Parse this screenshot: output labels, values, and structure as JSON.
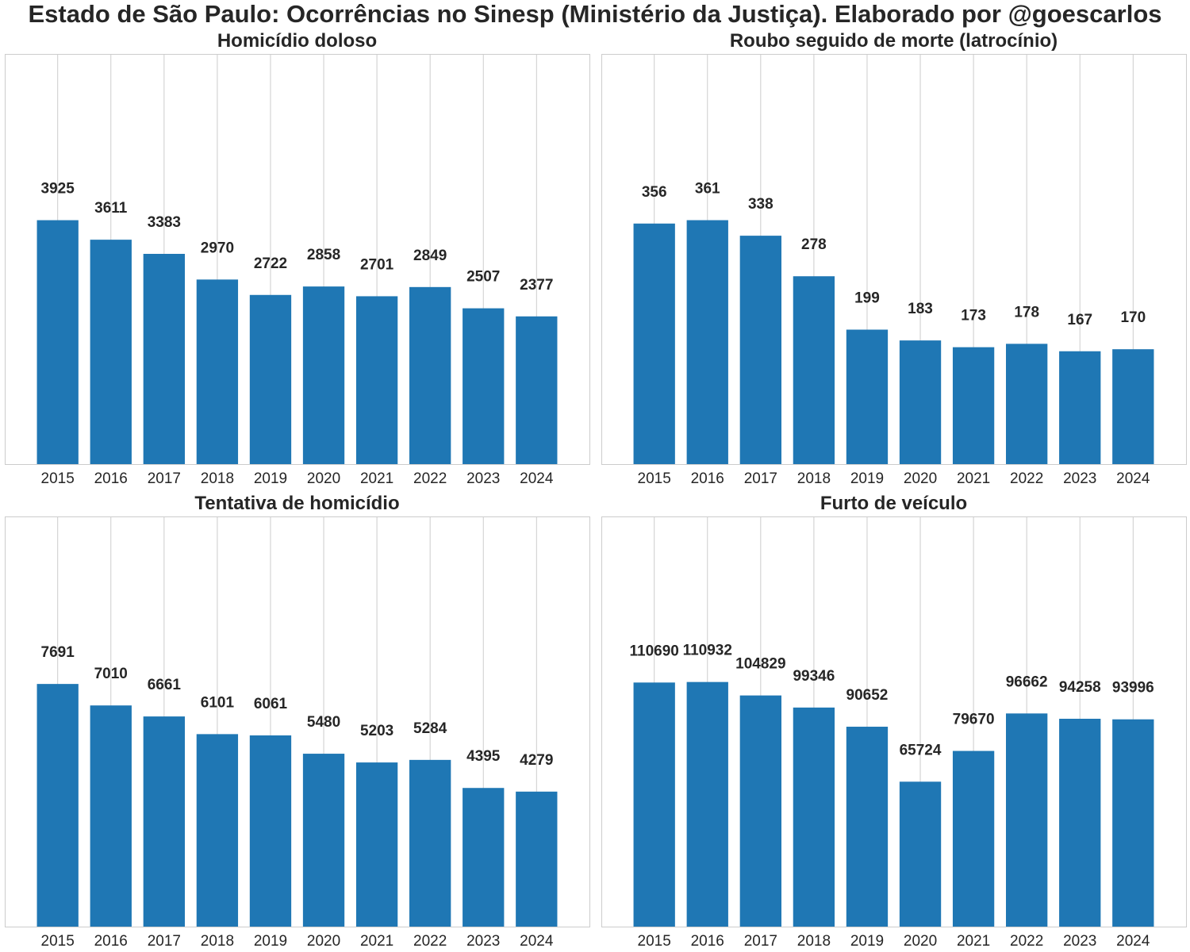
{
  "figure": {
    "title": "Estado de São Paulo: Ocorrências no Sinesp (Ministério da Justiça). Elaborado por @goescarlos",
    "bar_color": "#1f77b4",
    "grid_color": "#cccccc",
    "frame_color": "#cccccc"
  },
  "chart_data": [
    {
      "type": "bar",
      "title": "Homicídio doloso",
      "categories": [
        "2015",
        "2016",
        "2017",
        "2018",
        "2019",
        "2020",
        "2021",
        "2022",
        "2023",
        "2024"
      ],
      "values": [
        3925,
        3611,
        3383,
        2970,
        2722,
        2858,
        2701,
        2849,
        2507,
        2377
      ],
      "ylim": [
        0,
        6600
      ],
      "grid": "x"
    },
    {
      "type": "bar",
      "title": "Roubo seguido de morte (latrocínio)",
      "categories": [
        "2015",
        "2016",
        "2017",
        "2018",
        "2019",
        "2020",
        "2021",
        "2022",
        "2023",
        "2024"
      ],
      "values": [
        356,
        361,
        338,
        278,
        199,
        183,
        173,
        178,
        167,
        170
      ],
      "ylim": [
        0,
        607
      ],
      "grid": "x"
    },
    {
      "type": "bar",
      "title": "Tentativa de homicídio",
      "categories": [
        "2015",
        "2016",
        "2017",
        "2018",
        "2019",
        "2020",
        "2021",
        "2022",
        "2023",
        "2024"
      ],
      "values": [
        7691,
        7010,
        6661,
        6101,
        6061,
        5480,
        5203,
        5284,
        4395,
        4279
      ],
      "ylim": [
        0,
        13000
      ],
      "grid": "x"
    },
    {
      "type": "bar",
      "title": "Furto de veículo",
      "categories": [
        "2015",
        "2016",
        "2017",
        "2018",
        "2019",
        "2020",
        "2021",
        "2022",
        "2023",
        "2024"
      ],
      "values": [
        110690,
        110932,
        104829,
        99346,
        90652,
        65724,
        79670,
        96662,
        94258,
        93996
      ],
      "ylim": [
        0,
        186000
      ],
      "grid": "x"
    }
  ]
}
